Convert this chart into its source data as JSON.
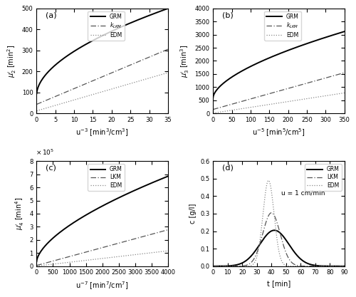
{
  "panel_a": {
    "label": "(a)",
    "xlabel": "u$^{-3}$ [min$^3$/cm$^3$]",
    "ylabel": "$\\mu_2^{\\prime}$ [min$^2$]",
    "xlim": [
      0,
      35
    ],
    "ylim": [
      0,
      500
    ],
    "yticks": [
      0,
      100,
      200,
      300,
      400,
      500
    ],
    "xticks": [
      0,
      5,
      10,
      15,
      20,
      25,
      30,
      35
    ],
    "grm": {
      "a": 90.0,
      "b": 58.0,
      "p": 0.55
    },
    "lkm": {
      "a": 43.0,
      "b": 7.5
    },
    "edm": {
      "a": 12.0,
      "b": 5.2
    }
  },
  "panel_b": {
    "label": "(b)",
    "xlabel": "u$^{-5}$ [min$^5$/cm$^5$]",
    "ylabel": "$\\mu_3^{\\prime}$ [min$^3$]",
    "xlim": [
      0,
      350
    ],
    "ylim": [
      0,
      4000
    ],
    "yticks": [
      0,
      500,
      1000,
      1500,
      2000,
      2500,
      3000,
      3500,
      4000
    ],
    "xticks": [
      0,
      50,
      100,
      150,
      200,
      250,
      300,
      350
    ],
    "grm": {
      "a": 600.0,
      "b": 75.0,
      "p": 0.6
    },
    "lkm": {
      "a": 150.0,
      "b": 4.0
    },
    "edm": {
      "a": 10.0,
      "b": 2.2
    }
  },
  "panel_c": {
    "label": "(c)",
    "xlabel": "u$^{-7}$ [min$^7$/cm$^7$]",
    "ylabel": "$\\mu_4^{\\prime}$ [min$^4$]",
    "xlim": [
      0,
      4000
    ],
    "ylim": [
      0,
      800000.0
    ],
    "yticks": [
      0,
      100000.0,
      200000.0,
      300000.0,
      400000.0,
      500000.0,
      600000.0,
      700000.0,
      800000.0
    ],
    "xticks": [
      0,
      500,
      1000,
      1500,
      2000,
      2500,
      3000,
      3500,
      4000
    ],
    "scale": 100000.0,
    "grm": {
      "a": 35000.0,
      "b": 3800.0,
      "p": 0.62
    },
    "lkm": {
      "a": 5000.0,
      "b": 68.0
    },
    "edm": {
      "a": 500.0,
      "b": 29.0
    }
  },
  "panel_d": {
    "label": "(d)",
    "xlabel": "t [min]",
    "ylabel": "c [g/l]",
    "xlim": [
      0,
      90
    ],
    "ylim": [
      0,
      0.6
    ],
    "yticks": [
      0,
      0.1,
      0.2,
      0.3,
      0.4,
      0.5,
      0.6
    ],
    "xticks": [
      0,
      10,
      20,
      30,
      40,
      50,
      60,
      70,
      80,
      90
    ],
    "annotation": "u = 1 cm/min",
    "grm": {
      "mu": 42.0,
      "sigma": 10.0,
      "height": 0.205
    },
    "lkm": {
      "mu": 40.0,
      "sigma": 6.0,
      "height": 0.305
    },
    "edm": {
      "mu": 38.0,
      "sigma": 3.8,
      "height": 0.49
    }
  }
}
